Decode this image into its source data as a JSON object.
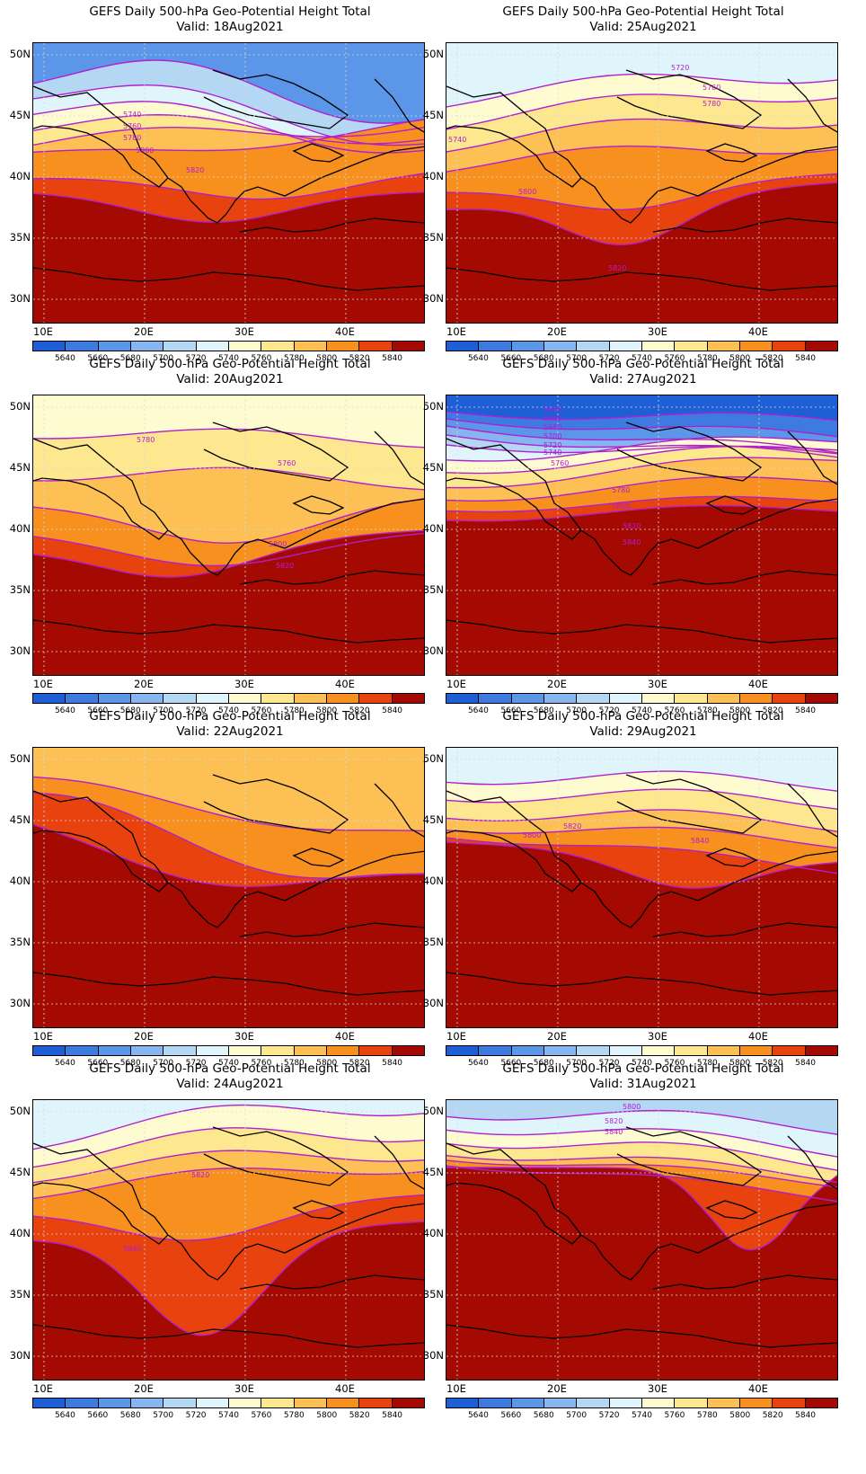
{
  "colorbar": {
    "colors": [
      "#1f5fd6",
      "#3d7be0",
      "#5b96e8",
      "#86b5ef",
      "#b4d8f4",
      "#dff5fb",
      "#fffbd0",
      "#fde88f",
      "#fcc055",
      "#f7901f",
      "#e8420e",
      "#a50a02"
    ],
    "labels": [
      "5640",
      "5660",
      "5680",
      "5700",
      "5720",
      "5740",
      "5760",
      "5780",
      "5800",
      "5820",
      "5840"
    ]
  },
  "axes": {
    "lat_labels": [
      "50N",
      "45N",
      "40N",
      "35N",
      "30N"
    ],
    "lon_labels": [
      "10E",
      "20E",
      "30E",
      "40E"
    ]
  },
  "contour_color": "#b01fd0",
  "panels": [
    {
      "title": "GEFS Daily 500-hPa Geo-Potential Height Total",
      "valid": "Valid: 18Aug2021",
      "contour_labels": [
        "5740",
        "5760",
        "5780",
        "5800",
        "5820"
      ]
    },
    {
      "title": "GEFS Daily 500-hPa Geo-Potential Height Total",
      "valid": "Valid: 25Aug2021",
      "contour_labels": [
        "5720",
        "5740",
        "5760",
        "5780",
        "5800",
        "5820"
      ]
    },
    {
      "title": "GEFS Daily 500-hPa Geo-Potential Height Total",
      "valid": "Valid: 20Aug2021",
      "contour_labels": [
        "5780",
        "5760",
        "5800",
        "5820"
      ]
    },
    {
      "title": "GEFS Daily 500-hPa Geo-Potential Height Total",
      "valid": "Valid: 27Aug2021",
      "contour_labels": [
        "5640",
        "5660",
        "5680",
        "5700",
        "5720",
        "5740",
        "5760",
        "5780",
        "5800",
        "5820",
        "5840"
      ]
    },
    {
      "title": "GEFS Daily 500-hPa Geo-Potential Height Total",
      "valid": "Valid: 22Aug2021",
      "contour_labels": []
    },
    {
      "title": "GEFS Daily 500-hPa Geo-Potential Height Total",
      "valid": "Valid: 29Aug2021",
      "contour_labels": [
        "5800",
        "5820",
        "5840"
      ]
    },
    {
      "title": "GEFS Daily 500-hPa Geo-Potential Height Total",
      "valid": "Valid: 24Aug2021",
      "contour_labels": [
        "5820",
        "5840"
      ]
    },
    {
      "title": "GEFS Daily 500-hPa Geo-Potential Height Total",
      "valid": "Valid: 31Aug2021",
      "contour_labels": [
        "5800",
        "5820",
        "5840"
      ]
    }
  ]
}
